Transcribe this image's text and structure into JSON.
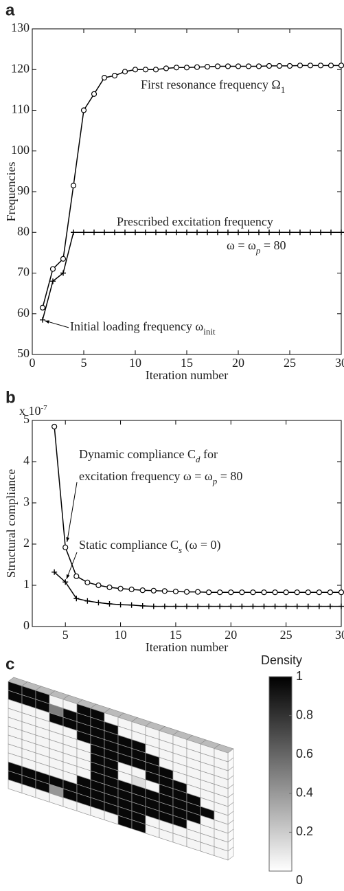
{
  "chart_data": [
    {
      "type": "line",
      "panel_label": "a",
      "xlabel": "Iteration number",
      "ylabel": "Frequencies",
      "x": [
        1,
        2,
        3,
        4,
        5,
        6,
        7,
        8,
        9,
        10,
        11,
        12,
        13,
        14,
        15,
        16,
        17,
        18,
        19,
        20,
        21,
        22,
        23,
        24,
        25,
        26,
        27,
        28,
        29,
        30
      ],
      "xlim": [
        0,
        30
      ],
      "xticks": [
        0,
        5,
        10,
        15,
        20,
        25,
        30
      ],
      "ylim": [
        50,
        130
      ],
      "yticks": [
        50,
        60,
        70,
        80,
        90,
        100,
        110,
        120,
        130
      ],
      "series": [
        {
          "marker": "o",
          "color": "#000000",
          "values": [
            61.5,
            71,
            73.5,
            91.5,
            110,
            114,
            118,
            118.5,
            119.5,
            120,
            120,
            120,
            120.3,
            120.5,
            120.5,
            120.6,
            120.7,
            120.8,
            120.8,
            120.8,
            120.8,
            120.8,
            120.9,
            120.9,
            120.9,
            121,
            121,
            121,
            121,
            121
          ]
        },
        {
          "marker": "+",
          "color": "#000000",
          "values": [
            58.5,
            68,
            70,
            80,
            80,
            80,
            80,
            80,
            80,
            80,
            80,
            80,
            80,
            80,
            80,
            80,
            80,
            80,
            80,
            80,
            80,
            80,
            80,
            80,
            80,
            80,
            80,
            80,
            80,
            80
          ]
        }
      ],
      "annotations": [
        {
          "parts": [
            {
              "text": "First resonance frequency Ω"
            },
            {
              "text": "1",
              "sub": true
            }
          ]
        },
        {
          "parts": [
            {
              "text": "Prescribed excitation frequency"
            }
          ]
        },
        {
          "parts": [
            {
              "text": "ω = ω"
            },
            {
              "text": "p",
              "sub": true
            },
            {
              "text": " = 80"
            }
          ]
        },
        {
          "parts": [
            {
              "text": "Initial loading frequency ω"
            },
            {
              "text": "init",
              "sub": true
            }
          ]
        }
      ]
    },
    {
      "type": "line",
      "panel_label": "b",
      "xlabel": "Iteration number",
      "ylabel": "Structural compliance",
      "multiplier": {
        "parts": [
          {
            "text": "x 10"
          },
          {
            "text": "-7",
            "sup": true
          }
        ]
      },
      "x": [
        4,
        5,
        6,
        7,
        8,
        9,
        10,
        11,
        12,
        13,
        14,
        15,
        16,
        17,
        18,
        19,
        20,
        21,
        22,
        23,
        24,
        25,
        26,
        27,
        28,
        29,
        30
      ],
      "xlim": [
        2,
        30
      ],
      "xticks": [
        5,
        10,
        15,
        20,
        25,
        30
      ],
      "ylim": [
        0,
        5e-07
      ],
      "yticks": [
        0,
        {
          "value": 1e-07,
          "label": "1"
        },
        {
          "value": 2e-07,
          "label": "2"
        },
        {
          "value": 3e-07,
          "label": "3"
        },
        {
          "value": 4e-07,
          "label": "4"
        },
        {
          "value": 5e-07,
          "label": "5"
        }
      ],
      "series": [
        {
          "marker": "o",
          "color": "#000000",
          "values": [
            4.85e-07,
            1.92e-07,
            1.22e-07,
            1.07e-07,
            1e-07,
            9.5e-08,
            9.2e-08,
            9e-08,
            8.8e-08,
            8.7e-08,
            8.6e-08,
            8.5e-08,
            8.4e-08,
            8.4e-08,
            8.3e-08,
            8.3e-08,
            8.3e-08,
            8.3e-08,
            8.3e-08,
            8.3e-08,
            8.3e-08,
            8.3e-08,
            8.3e-08,
            8.3e-08,
            8.3e-08,
            8.3e-08,
            8.3e-08
          ]
        },
        {
          "marker": "+",
          "color": "#000000",
          "values": [
            1.32e-07,
            1.08e-07,
            6.8e-08,
            6.2e-08,
            5.8e-08,
            5.5e-08,
            5.3e-08,
            5.2e-08,
            5e-08,
            4.9e-08,
            4.9e-08,
            4.9e-08,
            4.9e-08,
            4.9e-08,
            4.9e-08,
            4.9e-08,
            4.9e-08,
            4.9e-08,
            4.9e-08,
            4.9e-08,
            4.9e-08,
            4.9e-08,
            4.9e-08,
            4.9e-08,
            4.9e-08,
            4.9e-08,
            4.9e-08
          ]
        }
      ],
      "annotations": [
        {
          "parts": [
            {
              "text": "Dynamic compliance C"
            },
            {
              "text": "d",
              "sub": true
            },
            {
              "text": " for"
            }
          ]
        },
        {
          "parts": [
            {
              "text": "excitation frequency ω = ω"
            },
            {
              "text": "p",
              "sub": true
            },
            {
              "text": " = 80"
            }
          ]
        },
        {
          "parts": [
            {
              "text": "Static compliance C"
            },
            {
              "text": "s",
              "sub": true
            },
            {
              "text": " (ω = 0)"
            }
          ]
        }
      ]
    },
    {
      "type": "voxel",
      "panel_label": "c",
      "matrix": [
        [
          1,
          1,
          1,
          0,
          0,
          1,
          1,
          0,
          0,
          0,
          0,
          0,
          0,
          0,
          0,
          0
        ],
        [
          1,
          1,
          1,
          0.5,
          1,
          1,
          1,
          1,
          0,
          0,
          0,
          0,
          0,
          0,
          0,
          0
        ],
        [
          0,
          0,
          0,
          1,
          1,
          1,
          1,
          1,
          1,
          1,
          0,
          0,
          0,
          0,
          0,
          0
        ],
        [
          0,
          0,
          0,
          0,
          0,
          1,
          1,
          1,
          1,
          1,
          1,
          0,
          0,
          0,
          0,
          0
        ],
        [
          0,
          0,
          0,
          0,
          0,
          0,
          1,
          1,
          1,
          1,
          1,
          1,
          0,
          0,
          0,
          0
        ],
        [
          0,
          0,
          0,
          0,
          0,
          0,
          1,
          1,
          0,
          0,
          1,
          1,
          1,
          0,
          0,
          0
        ],
        [
          0,
          0,
          0,
          0,
          0,
          0,
          1,
          1,
          0,
          0.1,
          0,
          1,
          1,
          1,
          0,
          0
        ],
        [
          0,
          0,
          0,
          0,
          0,
          0,
          1,
          1,
          1,
          1,
          1,
          1,
          1,
          1,
          1,
          0
        ],
        [
          0,
          0,
          0,
          0,
          0,
          1,
          1,
          1,
          1,
          1,
          1,
          1,
          1,
          1,
          0,
          0
        ],
        [
          1,
          1,
          1,
          1,
          1,
          1,
          1,
          1,
          1,
          1,
          1,
          1,
          1,
          0,
          0,
          0
        ],
        [
          1,
          1,
          1,
          0.4,
          1,
          1,
          1,
          1,
          1,
          1,
          0,
          0,
          0,
          0,
          0,
          0
        ],
        [
          0,
          0,
          0,
          0,
          0,
          0,
          0,
          0,
          1,
          1,
          0,
          0,
          0,
          0,
          0,
          0
        ]
      ],
      "colorbar": {
        "label": "Density",
        "lim": [
          0,
          1
        ],
        "ticks": [
          0,
          0.2,
          0.4,
          0.6,
          0.8,
          1
        ]
      }
    }
  ]
}
